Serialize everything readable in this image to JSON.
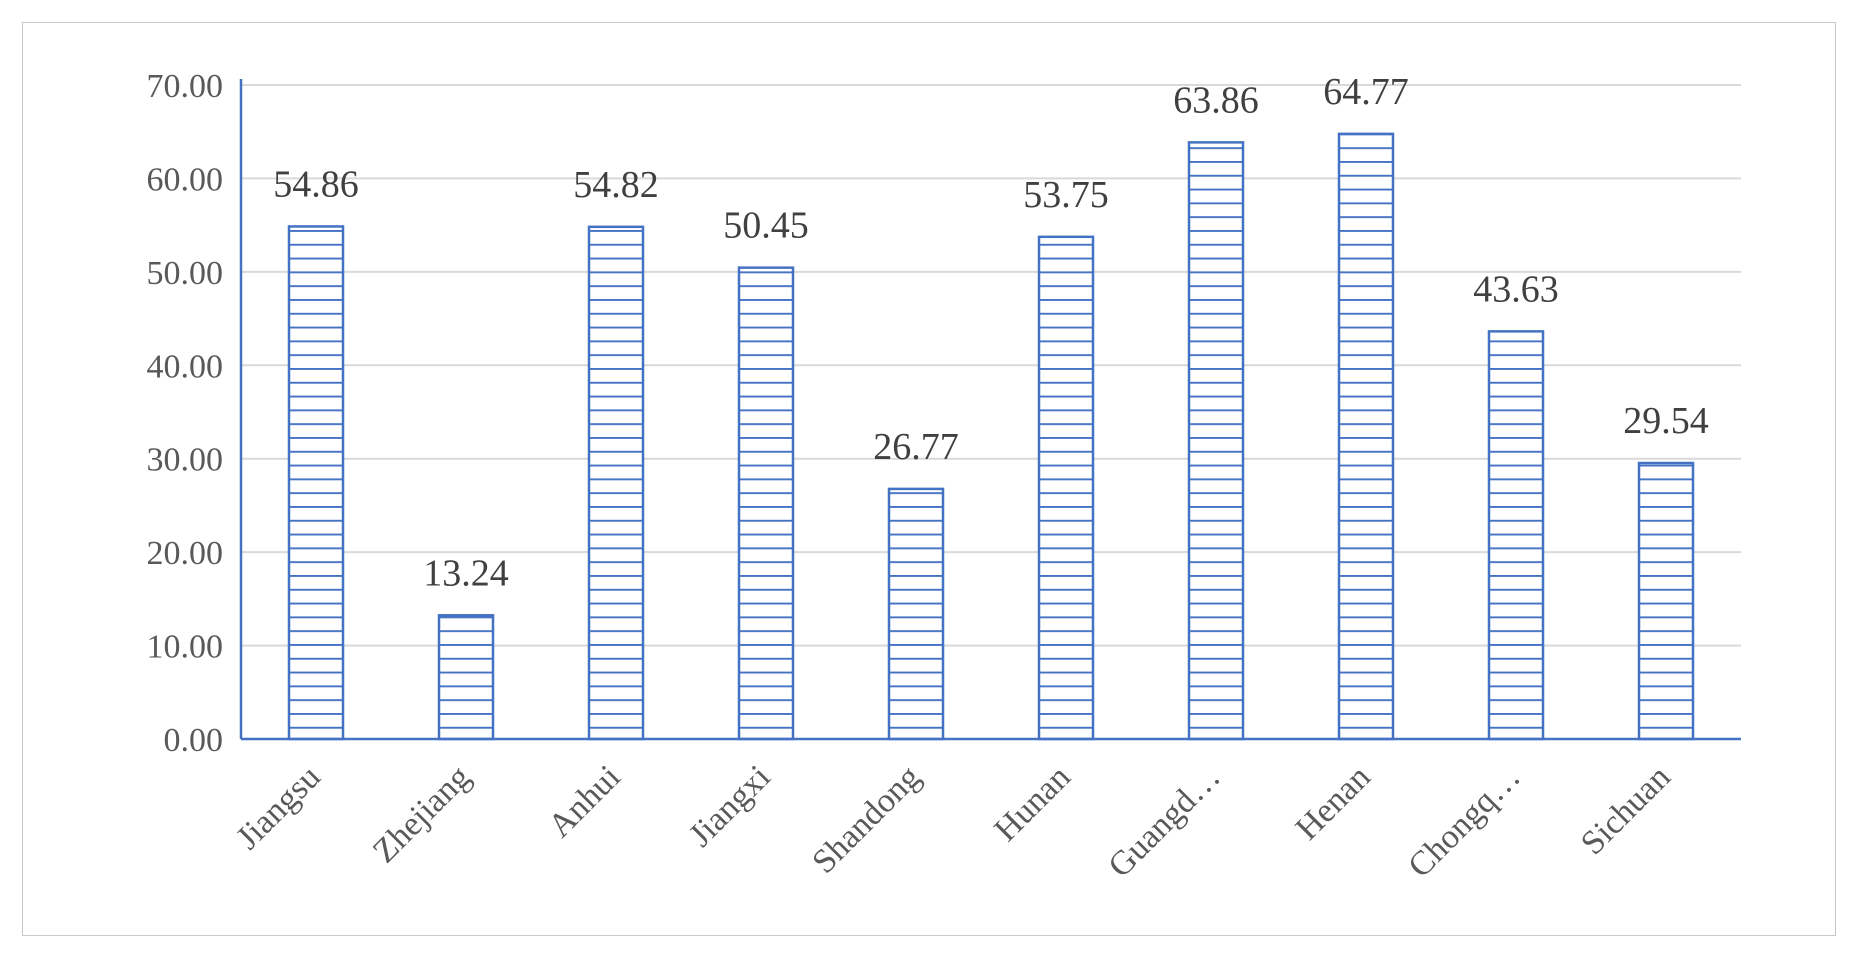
{
  "chart_data": {
    "type": "bar",
    "title": "",
    "xlabel": "",
    "ylabel": "",
    "categories": [
      "Jiangsu",
      "Zhejiang",
      "Anhui",
      "Jiangxi",
      "Shandong",
      "Hunan",
      "Guangd…",
      "Henan",
      "Chongq…",
      "Sichuan"
    ],
    "values": [
      54.86,
      13.24,
      54.82,
      50.45,
      26.77,
      53.75,
      63.86,
      64.77,
      43.63,
      29.54
    ],
    "value_labels": [
      "54.86",
      "13.24",
      "54.82",
      "50.45",
      "26.77",
      "53.75",
      "63.86",
      "64.77",
      "43.63",
      "29.54"
    ],
    "y_ticks": [
      0,
      10,
      20,
      30,
      40,
      50,
      60,
      70
    ],
    "y_tick_labels": [
      "0.00",
      "10.00",
      "20.00",
      "30.00",
      "40.00",
      "50.00",
      "60.00",
      "70.00"
    ],
    "ylim": [
      0,
      70
    ],
    "grid": true,
    "legend": "none",
    "bar_fill_pattern": "horizontal-stripes",
    "colors": {
      "bar_stroke": "#4472c4",
      "bar_fill": "#ffffff",
      "axis": "#4472c4",
      "grid": "#d9d9d9"
    }
  }
}
